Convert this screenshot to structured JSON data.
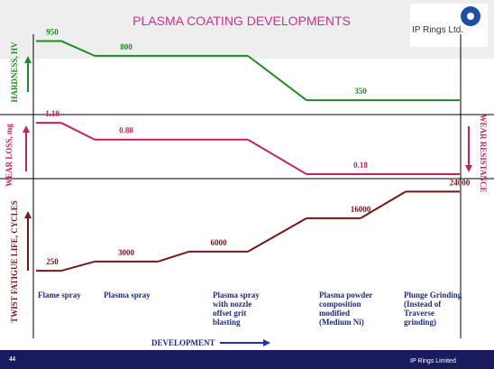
{
  "header": {
    "title": "PLASMA COATING DEVELOPMENTS",
    "logo_text": "IP Rings Ltd."
  },
  "chart_data": [
    {
      "type": "line",
      "ylabel": "HARDNESS, HV",
      "categories": [
        "Flame spray",
        "Plasma spray",
        "Plasma spray with nozzle offset grit blasting",
        "Plasma powder composition modified (Medium Ni)",
        "Plunge Grinding (Instead of Traverse grinding)"
      ],
      "series": [
        {
          "name": "Hardness",
          "color": "#1e8c1e",
          "values": [
            950,
            800,
            800,
            350,
            350
          ],
          "value_labels": [
            "950",
            "800",
            null,
            "350",
            null
          ]
        }
      ],
      "ylim": [
        250,
        1000
      ]
    },
    {
      "type": "line",
      "ylabel": "WEAR LOSS, mg",
      "y2label": "WEAR RESISTANCE",
      "series": [
        {
          "name": "Wear loss",
          "color": "#cc1f5a",
          "values": [
            1.1,
            0.8,
            0.8,
            0.18,
            0.18
          ],
          "value_labels": [
            "1.10",
            "0.80",
            null,
            "0.18",
            null
          ]
        }
      ],
      "ylim": [
        0.1,
        1.2
      ]
    },
    {
      "type": "line",
      "ylabel": "TWIST FATIGUE LIFE, CYCLES",
      "xlabel": "DEVELOPMENT",
      "series": [
        {
          "name": "Fatigue life",
          "color": "#7a1616",
          "values": [
            250,
            3000,
            6000,
            16000,
            24000
          ],
          "value_labels": [
            "250",
            "3000",
            "6000",
            "16000",
            "24000"
          ]
        }
      ],
      "ylim": [
        0,
        26000
      ]
    }
  ],
  "footer": {
    "page": "44",
    "company": "IP Rings Limited"
  }
}
